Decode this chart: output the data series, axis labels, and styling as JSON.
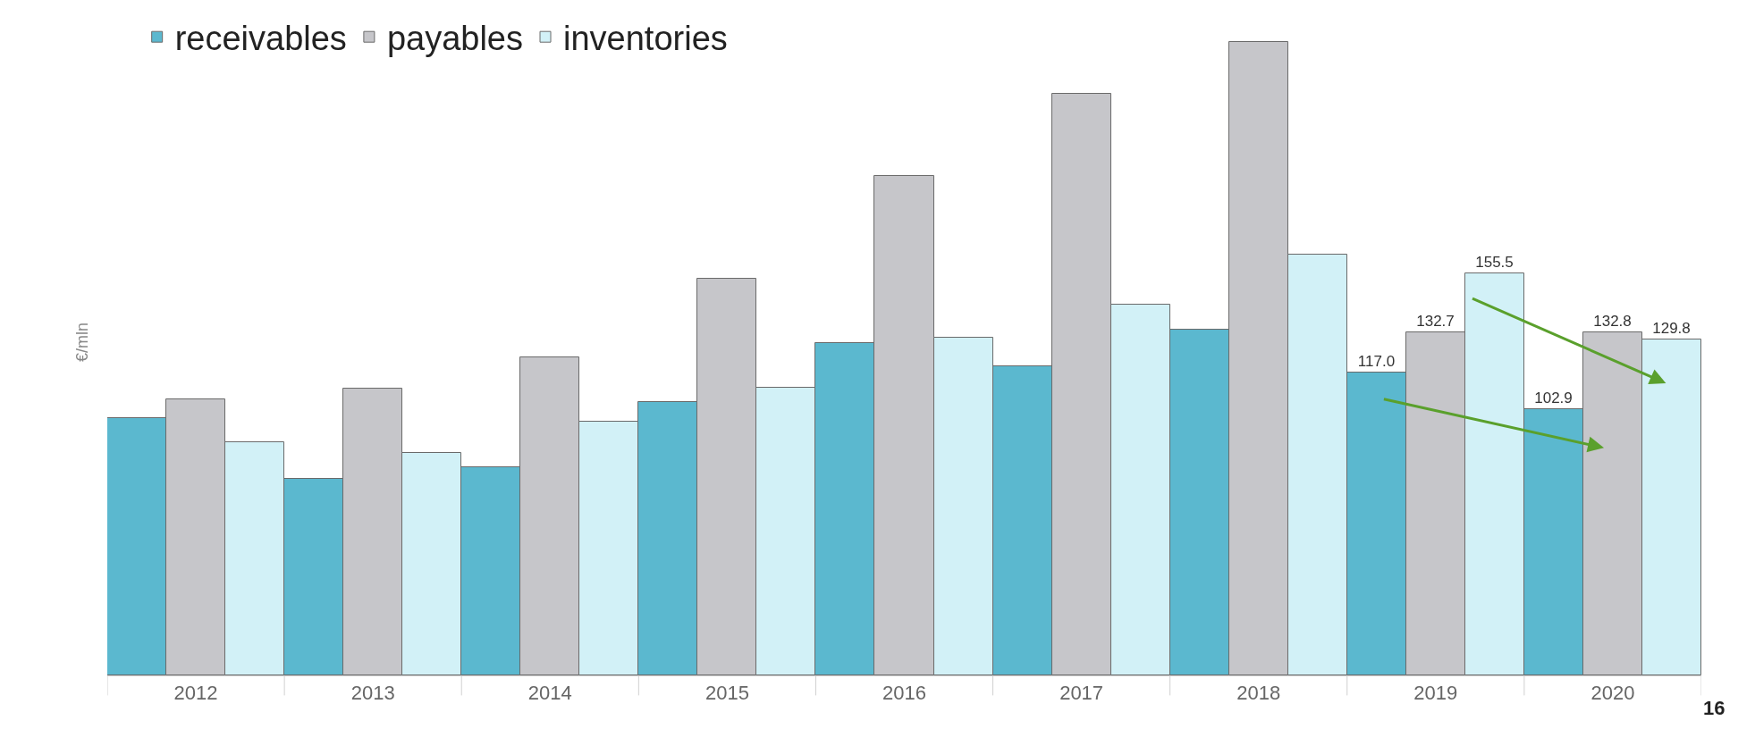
{
  "chart_data": {
    "type": "bar",
    "ylabel": "€/mln",
    "categories": [
      "2012",
      "2013",
      "2014",
      "2015",
      "2016",
      "2017",
      "2018",
      "2019",
      "2020"
    ],
    "series": [
      {
        "name": "receivables",
        "color": "#5bb8cf",
        "values": [
          99.6,
          75.9,
          80.4,
          105.7,
          128.6,
          119.6,
          133.9,
          117.0,
          102.9
        ],
        "value_labels": [
          null,
          null,
          null,
          null,
          null,
          null,
          null,
          "117.0",
          "102.9"
        ]
      },
      {
        "name": "payables",
        "color": "#c6c6ca",
        "values": [
          106.9,
          111.0,
          122.9,
          153.5,
          193.1,
          224.9,
          244.9,
          132.7,
          132.8
        ],
        "value_labels": [
          null,
          null,
          null,
          null,
          null,
          null,
          null,
          "132.7",
          "132.8"
        ]
      },
      {
        "name": "inventories",
        "color": "#d2f1f7",
        "values": [
          90.2,
          86.1,
          98.0,
          111.4,
          130.6,
          143.3,
          162.9,
          155.5,
          129.8
        ],
        "value_labels": [
          null,
          null,
          null,
          null,
          null,
          null,
          null,
          "155.5",
          "129.8"
        ]
      }
    ],
    "legend": "top left",
    "tick_labels": "x",
    "annotations": [
      "16"
    ]
  }
}
